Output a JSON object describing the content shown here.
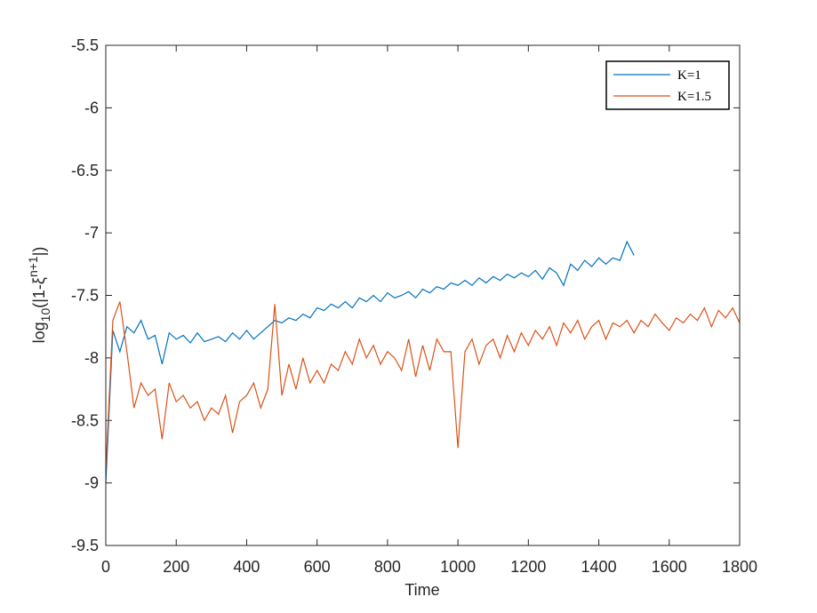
{
  "chart_data": {
    "type": "line",
    "xlabel": "Time",
    "ylabel": {
      "base": "log",
      "sub": "10",
      "open": "(|1-ξ",
      "sup": "n+1",
      "close": "|)"
    },
    "x": [
      0,
      20,
      40,
      60,
      80,
      100,
      120,
      140,
      160,
      180,
      200,
      220,
      240,
      260,
      280,
      300,
      320,
      340,
      360,
      380,
      400,
      420,
      440,
      460,
      480,
      500,
      520,
      540,
      560,
      580,
      600,
      620,
      640,
      660,
      680,
      700,
      720,
      740,
      760,
      780,
      800,
      820,
      840,
      860,
      880,
      900,
      920,
      940,
      960,
      980,
      1000,
      1020,
      1040,
      1060,
      1080,
      1100,
      1120,
      1140,
      1160,
      1180,
      1200,
      1220,
      1240,
      1260,
      1280,
      1300,
      1320,
      1340,
      1360,
      1380,
      1400,
      1420,
      1440,
      1460,
      1480,
      1500,
      1520,
      1540,
      1560,
      1580,
      1600,
      1620,
      1640,
      1660,
      1680,
      1700,
      1720,
      1740,
      1760,
      1780,
      1800
    ],
    "series": [
      {
        "name": "K=1",
        "color": "#0072bd",
        "values": [
          -9.0,
          -7.78,
          -7.95,
          -7.75,
          -7.8,
          -7.7,
          -7.85,
          -7.82,
          -8.05,
          -7.8,
          -7.85,
          -7.82,
          -7.88,
          -7.8,
          -7.87,
          -7.85,
          -7.83,
          -7.87,
          -7.8,
          -7.85,
          -7.78,
          -7.85,
          -7.8,
          -7.75,
          -7.7,
          -7.72,
          -7.68,
          -7.7,
          -7.65,
          -7.68,
          -7.6,
          -7.62,
          -7.57,
          -7.6,
          -7.55,
          -7.6,
          -7.52,
          -7.55,
          -7.5,
          -7.55,
          -7.48,
          -7.52,
          -7.5,
          -7.47,
          -7.52,
          -7.45,
          -7.48,
          -7.43,
          -7.45,
          -7.4,
          -7.42,
          -7.38,
          -7.42,
          -7.36,
          -7.4,
          -7.35,
          -7.38,
          -7.33,
          -7.36,
          -7.32,
          -7.35,
          -7.3,
          -7.37,
          -7.28,
          -7.32,
          -7.42,
          -7.25,
          -7.3,
          -7.22,
          -7.27,
          -7.2,
          -7.25,
          -7.2,
          -7.22,
          -7.07,
          -7.18,
          null,
          null,
          null,
          null,
          null,
          null,
          null,
          null,
          null,
          null,
          null,
          null,
          null,
          null,
          null
        ]
      },
      {
        "name": "K=1.5",
        "color": "#d95319",
        "values": [
          -8.9,
          -7.7,
          -7.55,
          -7.95,
          -8.4,
          -8.2,
          -8.3,
          -8.25,
          -8.65,
          -8.2,
          -8.35,
          -8.3,
          -8.4,
          -8.35,
          -8.5,
          -8.4,
          -8.45,
          -8.3,
          -8.6,
          -8.35,
          -8.3,
          -8.2,
          -8.4,
          -8.25,
          -7.57,
          -8.3,
          -8.05,
          -8.25,
          -8.0,
          -8.2,
          -8.1,
          -8.2,
          -8.05,
          -8.1,
          -7.95,
          -8.05,
          -7.85,
          -8.0,
          -7.9,
          -8.05,
          -7.95,
          -8.0,
          -8.1,
          -7.85,
          -8.15,
          -7.9,
          -8.1,
          -7.85,
          -7.95,
          -7.95,
          -8.72,
          -7.95,
          -7.85,
          -8.05,
          -7.9,
          -7.85,
          -8.0,
          -7.82,
          -7.95,
          -7.8,
          -7.9,
          -7.78,
          -7.85,
          -7.75,
          -7.9,
          -7.72,
          -7.8,
          -7.7,
          -7.85,
          -7.75,
          -7.7,
          -7.85,
          -7.72,
          -7.75,
          -7.7,
          -7.8,
          -7.7,
          -7.75,
          -7.65,
          -7.72,
          -7.78,
          -7.68,
          -7.72,
          -7.65,
          -7.7,
          -7.6,
          -7.75,
          -7.62,
          -7.68,
          -7.6,
          -7.72
        ]
      }
    ],
    "xlim": [
      0,
      1800
    ],
    "xticks": [
      0,
      200,
      400,
      600,
      800,
      1000,
      1200,
      1400,
      1600,
      1800
    ],
    "ylim": [
      -9.5,
      -5.5
    ],
    "yticks": [
      -9.5,
      -9,
      -8.5,
      -8,
      -7.5,
      -7,
      -6.5,
      -6,
      -5.5
    ],
    "legend": "northeast"
  }
}
